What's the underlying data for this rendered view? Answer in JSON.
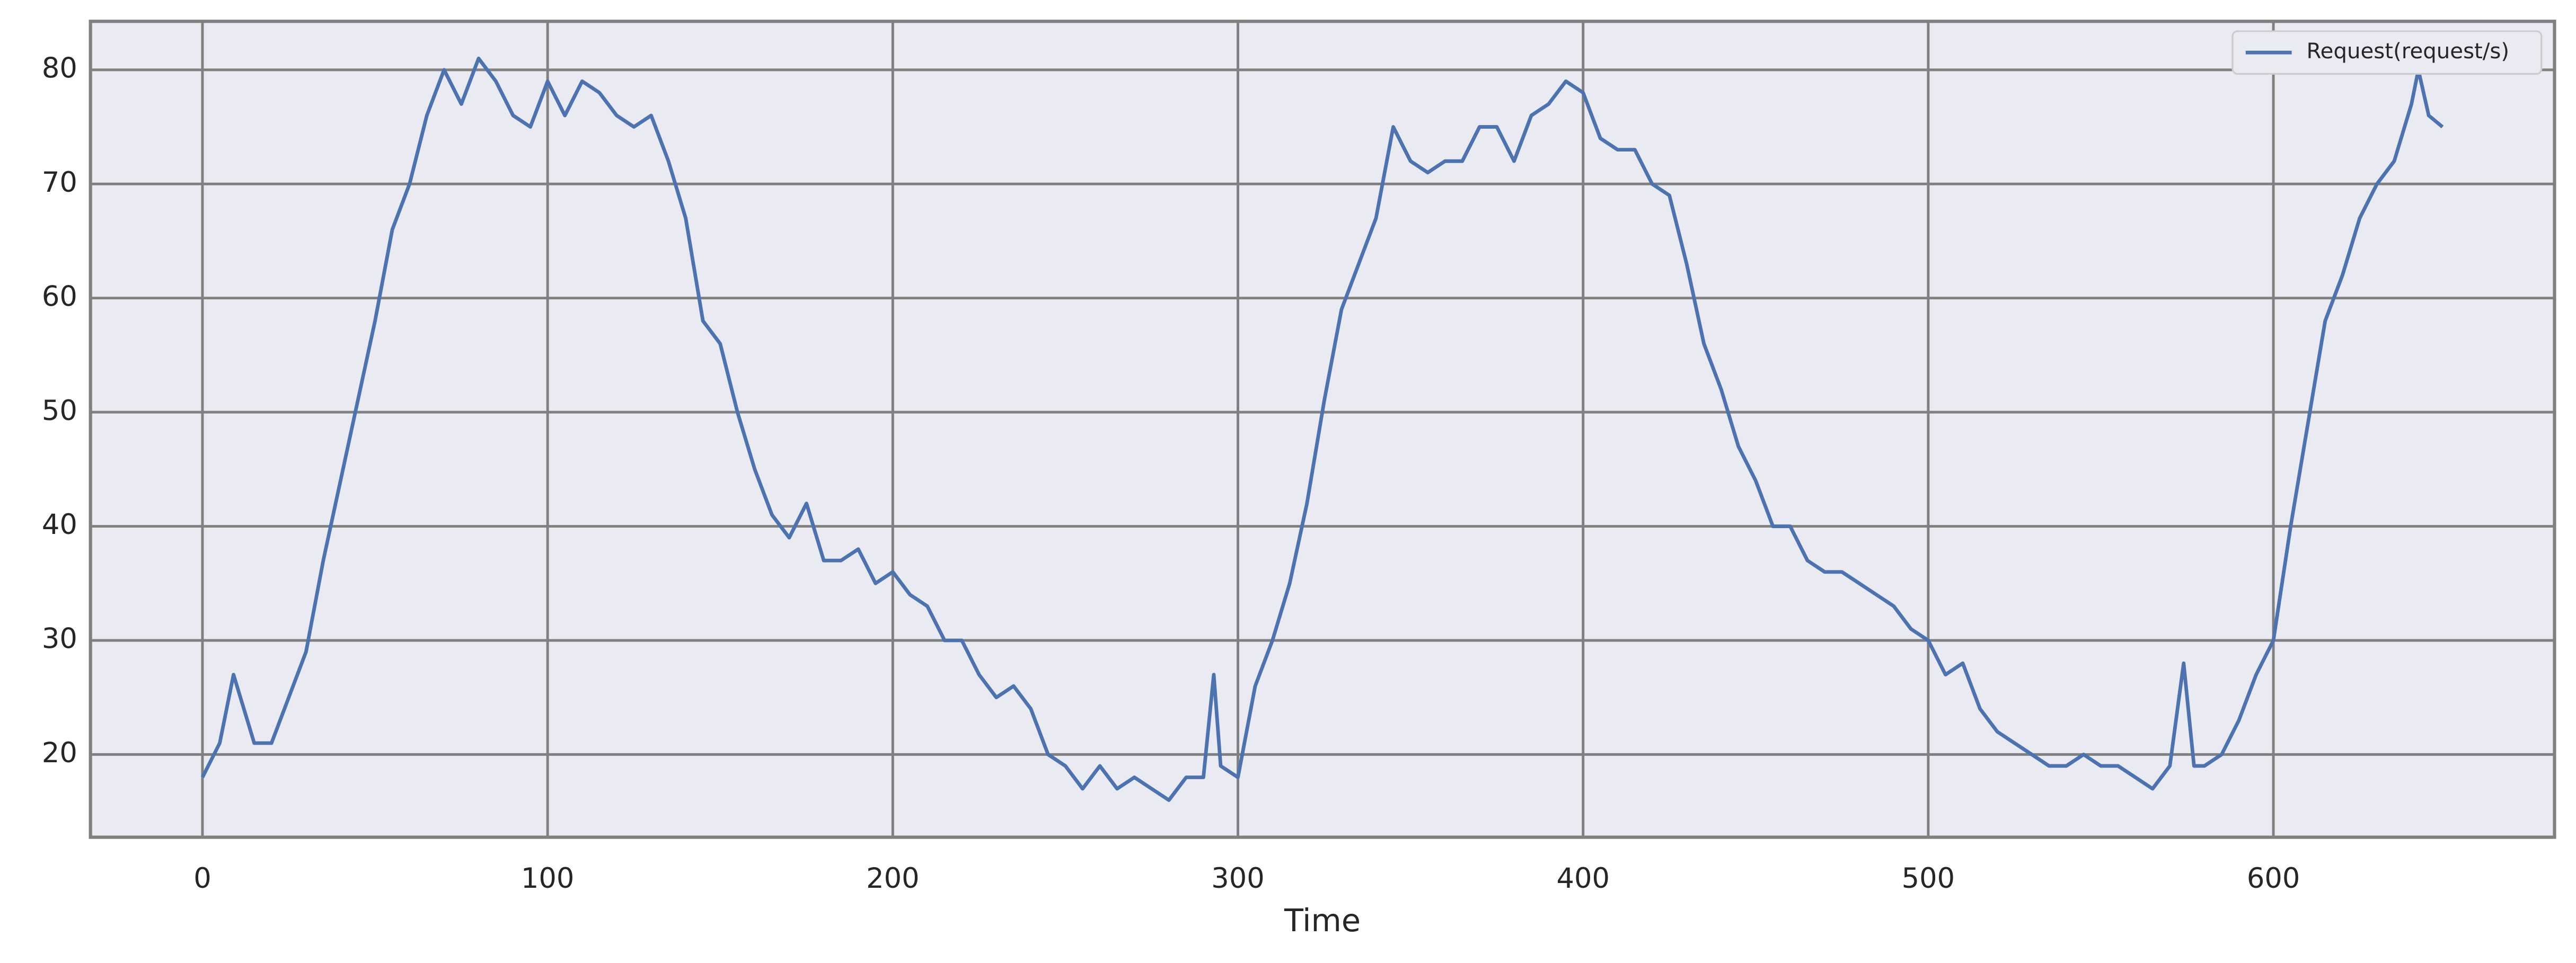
{
  "chart_data": {
    "type": "line",
    "xlabel": "Time",
    "x": [
      0,
      5,
      9,
      10,
      15,
      20,
      25,
      30,
      35,
      40,
      45,
      50,
      55,
      60,
      65,
      70,
      75,
      80,
      85,
      90,
      95,
      100,
      105,
      110,
      115,
      120,
      125,
      130,
      135,
      140,
      145,
      150,
      155,
      160,
      165,
      170,
      175,
      180,
      185,
      190,
      195,
      200,
      205,
      210,
      215,
      220,
      225,
      230,
      235,
      240,
      245,
      250,
      255,
      260,
      265,
      270,
      275,
      280,
      285,
      290,
      293,
      295,
      300,
      305,
      310,
      315,
      320,
      325,
      330,
      335,
      340,
      345,
      350,
      355,
      360,
      365,
      370,
      375,
      380,
      385,
      390,
      395,
      400,
      405,
      410,
      415,
      420,
      425,
      430,
      435,
      440,
      445,
      450,
      455,
      460,
      465,
      470,
      475,
      480,
      485,
      490,
      495,
      500,
      505,
      510,
      515,
      520,
      525,
      530,
      535,
      540,
      545,
      550,
      555,
      560,
      565,
      570,
      574,
      577,
      580,
      585,
      590,
      595,
      600,
      605,
      610,
      615,
      620,
      625,
      630,
      635,
      640,
      642,
      645,
      649
    ],
    "series": [
      {
        "name": "Request(request/s)",
        "color": "#4c72b0",
        "values": [
          18,
          21,
          27,
          26,
          21,
          21,
          25,
          29,
          37,
          44,
          51,
          58,
          66,
          70,
          76,
          80,
          77,
          81,
          79,
          76,
          75,
          79,
          76,
          79,
          78,
          76,
          75,
          76,
          72,
          67,
          58,
          56,
          50,
          45,
          41,
          39,
          42,
          37,
          37,
          38,
          35,
          36,
          34,
          33,
          30,
          30,
          27,
          25,
          26,
          24,
          20,
          19,
          17,
          19,
          17,
          18,
          17,
          16,
          18,
          18,
          27,
          19,
          18,
          26,
          30,
          35,
          42,
          51,
          59,
          63,
          67,
          75,
          72,
          71,
          72,
          72,
          75,
          75,
          72,
          76,
          77,
          79,
          78,
          74,
          73,
          73,
          70,
          69,
          63,
          56,
          52,
          47,
          44,
          40,
          40,
          37,
          36,
          36,
          35,
          34,
          33,
          31,
          30,
          27,
          28,
          24,
          22,
          21,
          20,
          19,
          19,
          20,
          19,
          19,
          18,
          17,
          19,
          28,
          19,
          19,
          20,
          23,
          27,
          30,
          40,
          49,
          58,
          62,
          67,
          70,
          72,
          77,
          80,
          76,
          75
        ]
      }
    ],
    "xlim": [
      -32.45,
      681.45
    ],
    "ylim": [
      12.75,
      84.25
    ],
    "xticks": [
      0,
      100,
      200,
      300,
      400,
      500,
      600
    ],
    "yticks": [
      20,
      30,
      40,
      50,
      60,
      70,
      80
    ],
    "grid": true,
    "legend": "upper right"
  }
}
